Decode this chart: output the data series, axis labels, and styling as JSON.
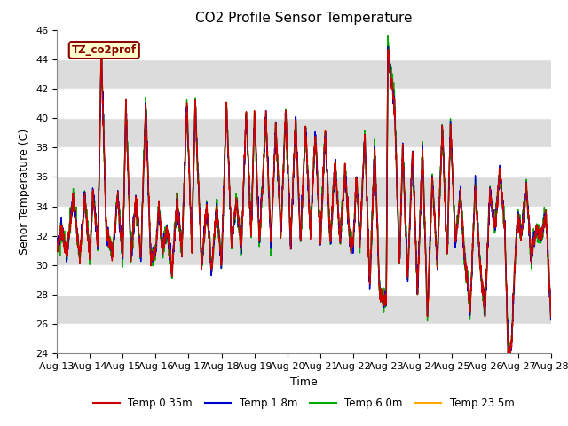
{
  "title": "CO2 Profile Sensor Temperature",
  "ylabel": "Senor Temperature (C)",
  "xlabel": "Time",
  "ylim": [
    24,
    46
  ],
  "legend_label": "TZ_co2prof",
  "series_labels": [
    "Temp 0.35m",
    "Temp 1.8m",
    "Temp 6.0m",
    "Temp 23.5m"
  ],
  "series_colors": [
    "#cc0000",
    "#0000cc",
    "#00aa00",
    "#ffaa00"
  ],
  "xtick_labels": [
    "Aug 13",
    "Aug 14",
    "Aug 15",
    "Aug 16",
    "Aug 17",
    "Aug 18",
    "Aug 19",
    "Aug 20",
    "Aug 21",
    "Aug 22",
    "Aug 23",
    "Aug 24",
    "Aug 25",
    "Aug 26",
    "Aug 27",
    "Aug 28"
  ],
  "ytick_vals": [
    24,
    26,
    28,
    30,
    32,
    34,
    36,
    38,
    40,
    42,
    44,
    46
  ],
  "bg_color": "#dcdcdc",
  "band_color": "#e8e8e8",
  "title_fontsize": 11,
  "axis_fontsize": 9,
  "tick_fontsize": 8,
  "legend_fontsize": 8.5
}
